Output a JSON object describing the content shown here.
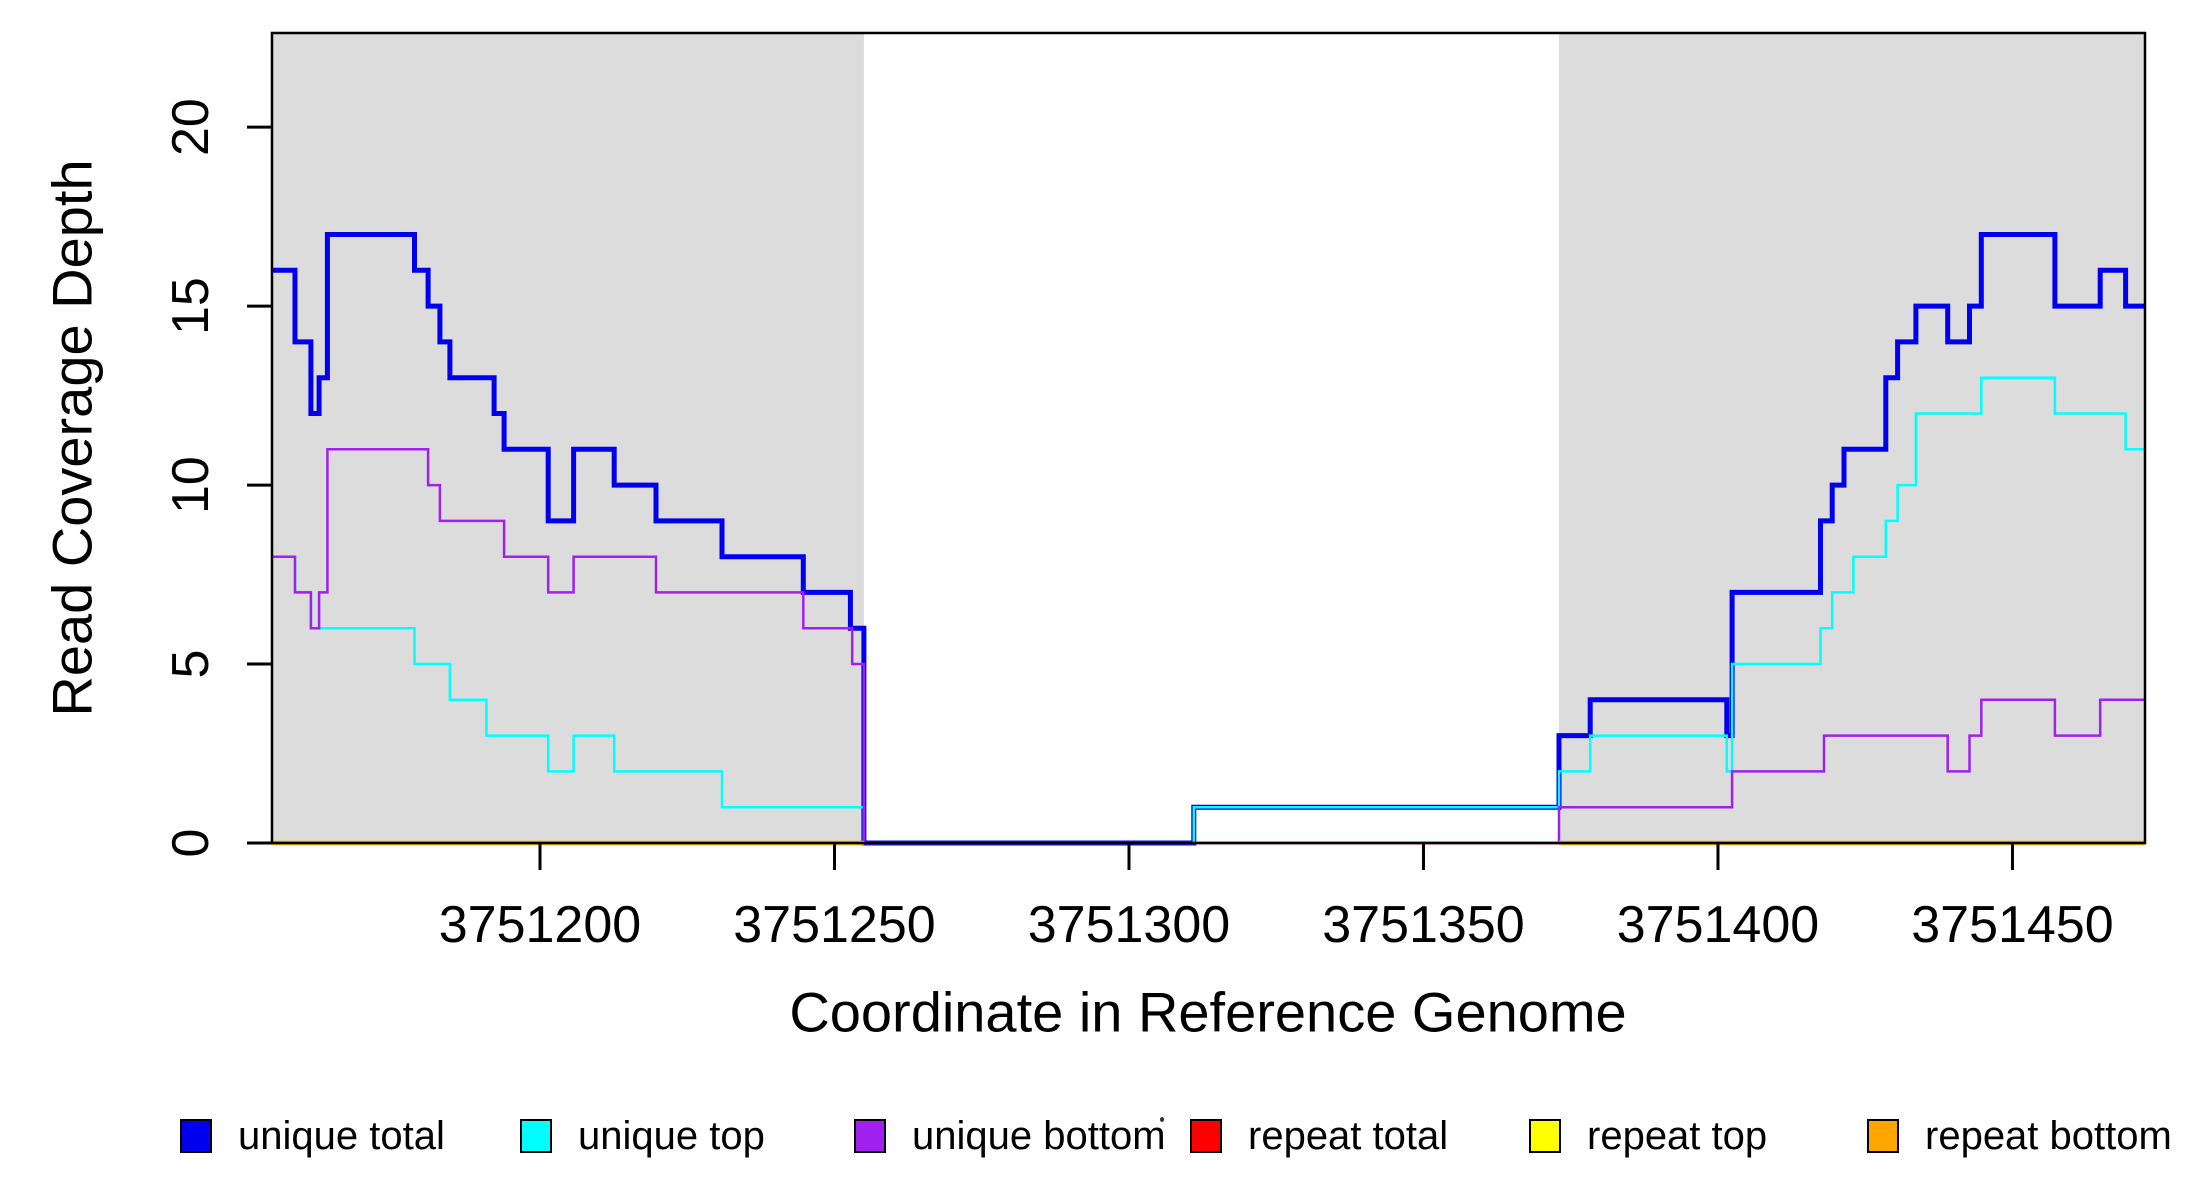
{
  "figure": {
    "y_axis_title": "Read Coverage Depth",
    "x_axis_title": "Coordinate in Reference Genome"
  },
  "legend": {
    "items": [
      {
        "label": "unique total",
        "color": "#0000EE"
      },
      {
        "label": "unique top",
        "color": "#00FFFF"
      },
      {
        "label": "unique bottom",
        "color": "#A020F0"
      },
      {
        "label": "repeat total",
        "color": "#FF0000"
      },
      {
        "label": "repeat top",
        "color": "#FFFF00"
      },
      {
        "label": "repeat bottom",
        "color": "#FFA500"
      }
    ]
  },
  "chart_data": {
    "type": "line",
    "subtype": "step",
    "title": "",
    "xlabel": "Coordinate in Reference Genome",
    "ylabel": "Read Coverage Depth",
    "xlim": [
      3751154.5,
      3751472.5
    ],
    "ylim": [
      0,
      22.63
    ],
    "x_ticks": [
      3751200,
      3751250,
      3751300,
      3751350,
      3751400,
      3751450
    ],
    "y_ticks": [
      0,
      5,
      10,
      15,
      20
    ],
    "grid": false,
    "shade_color": "#DCDCDC",
    "shaded_regions": [
      [
        3751154.5,
        3751255
      ],
      [
        3751373,
        3751472.5
      ]
    ],
    "series": [
      {
        "name": "unique total",
        "color": "#0000EE",
        "width": 5,
        "segments": [
          [
            3751154.5,
            3751158.4,
            16
          ],
          [
            3751158.4,
            3751161.1,
            14
          ],
          [
            3751161.1,
            3751162.5,
            12
          ],
          [
            3751162.5,
            3751163.9,
            13
          ],
          [
            3751163.9,
            3751178.7,
            17
          ],
          [
            3751178.7,
            3751181,
            16
          ],
          [
            3751181,
            3751183,
            15
          ],
          [
            3751183,
            3751184.7,
            14
          ],
          [
            3751184.7,
            3751192.2,
            13
          ],
          [
            3751192.2,
            3751193.9,
            12
          ],
          [
            3751193.9,
            3751201.4,
            11
          ],
          [
            3751201.4,
            3751205.7,
            9
          ],
          [
            3751205.7,
            3751212.6,
            11
          ],
          [
            3751212.6,
            3751219.7,
            10
          ],
          [
            3751219.7,
            3751230.9,
            9
          ],
          [
            3751230.9,
            3751244.7,
            8
          ],
          [
            3751244.7,
            3751252.7,
            7
          ],
          [
            3751252.7,
            3751255,
            6
          ],
          [
            3751255,
            3751311,
            0
          ],
          [
            3751311,
            3751373,
            1
          ],
          [
            3751373,
            3751378.3,
            3
          ],
          [
            3751378.3,
            3751401.5,
            4
          ],
          [
            3751401.5,
            3751402.4,
            3
          ],
          [
            3751402.4,
            3751417.4,
            7
          ],
          [
            3751417.4,
            3751419.4,
            9
          ],
          [
            3751419.4,
            3751421.4,
            10
          ],
          [
            3751421.4,
            3751428.5,
            11
          ],
          [
            3751428.5,
            3751430.5,
            13
          ],
          [
            3751430.5,
            3751433.6,
            14
          ],
          [
            3751433.6,
            3751439,
            15
          ],
          [
            3751439,
            3751442.7,
            14
          ],
          [
            3751442.7,
            3751444.7,
            15
          ],
          [
            3751444.7,
            3751457.2,
            17
          ],
          [
            3751457.2,
            3751464.9,
            15
          ],
          [
            3751464.9,
            3751469.2,
            16
          ],
          [
            3751469.2,
            3751472.5,
            15
          ]
        ]
      },
      {
        "name": "unique top",
        "color": "#00FFFF",
        "width": 2.5,
        "segments": [
          [
            3751154.5,
            3751158.4,
            8
          ],
          [
            3751158.4,
            3751161.1,
            7
          ],
          [
            3751161.1,
            3751178.7,
            6
          ],
          [
            3751178.7,
            3751184.7,
            5
          ],
          [
            3751184.7,
            3751190.9,
            4
          ],
          [
            3751190.9,
            3751201.4,
            3
          ],
          [
            3751201.4,
            3751205.7,
            2
          ],
          [
            3751205.7,
            3751212.6,
            3
          ],
          [
            3751212.6,
            3751230.9,
            2
          ],
          [
            3751230.9,
            3751255,
            1
          ],
          [
            3751255,
            3751311,
            0
          ],
          [
            3751311,
            3751373,
            1
          ],
          [
            3751373,
            3751378.3,
            2
          ],
          [
            3751378.3,
            3751401.5,
            3
          ],
          [
            3751401.5,
            3751402.4,
            2
          ],
          [
            3751402.4,
            3751417.4,
            5
          ],
          [
            3751417.4,
            3751419.4,
            6
          ],
          [
            3751419.4,
            3751423,
            7
          ],
          [
            3751423,
            3751428.5,
            8
          ],
          [
            3751428.5,
            3751430.5,
            9
          ],
          [
            3751430.5,
            3751433.6,
            10
          ],
          [
            3751433.6,
            3751444.7,
            12
          ],
          [
            3751444.7,
            3751457.2,
            13
          ],
          [
            3751457.2,
            3751469.2,
            12
          ],
          [
            3751469.2,
            3751472.5,
            11
          ]
        ]
      },
      {
        "name": "unique bottom",
        "color": "#A020F0",
        "width": 2.5,
        "segments": [
          [
            3751154.5,
            3751158.4,
            8
          ],
          [
            3751158.4,
            3751161.1,
            7
          ],
          [
            3751161.1,
            3751162.5,
            6
          ],
          [
            3751162.5,
            3751163.9,
            7
          ],
          [
            3751163.9,
            3751181,
            11
          ],
          [
            3751181,
            3751183,
            10
          ],
          [
            3751183,
            3751193.9,
            9
          ],
          [
            3751193.9,
            3751201.4,
            8
          ],
          [
            3751201.4,
            3751205.7,
            7
          ],
          [
            3751205.7,
            3751219.7,
            8
          ],
          [
            3751219.7,
            3751244.7,
            7
          ],
          [
            3751244.7,
            3751253,
            6
          ],
          [
            3751253,
            3751255,
            5
          ],
          [
            3751255,
            3751373,
            0
          ],
          [
            3751373,
            3751402.4,
            1
          ],
          [
            3751402.4,
            3751418,
            2
          ],
          [
            3751418,
            3751439,
            3
          ],
          [
            3751439,
            3751442.7,
            2
          ],
          [
            3751442.7,
            3751444.7,
            3
          ],
          [
            3751444.7,
            3751457.2,
            4
          ],
          [
            3751457.2,
            3751464.9,
            3
          ],
          [
            3751464.9,
            3751472.5,
            4
          ]
        ]
      },
      {
        "name": "repeat total",
        "color": "#FF0000",
        "width": 2.5,
        "segments": [
          [
            3751154.5,
            3751255,
            0
          ],
          [
            3751311,
            3751472.5,
            0
          ]
        ]
      },
      {
        "name": "repeat top",
        "color": "#FFFF00",
        "width": 2.5,
        "segments": [
          [
            3751154.5,
            3751255,
            0
          ],
          [
            3751373,
            3751472.5,
            0
          ]
        ]
      },
      {
        "name": "repeat bottom",
        "color": "#FFA500",
        "width": 4.5,
        "segments": [
          [
            3751154.5,
            3751255,
            0
          ],
          [
            3751373,
            3751472.5,
            0
          ]
        ]
      }
    ]
  }
}
